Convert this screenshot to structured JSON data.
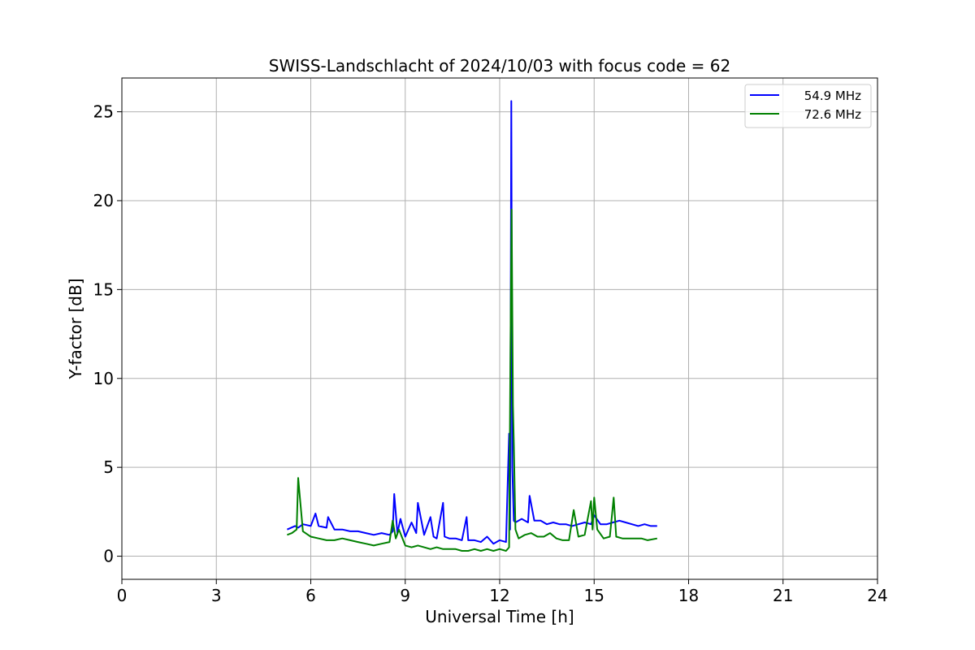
{
  "chart_data": {
    "type": "line",
    "title": "SWISS-Landschlacht of 2024/10/03 with focus code = 62",
    "xlabel": "Universal Time [h]",
    "ylabel": "Y-factor [dB]",
    "xlim": [
      0,
      24
    ],
    "ylim": [
      -1.3,
      26.9
    ],
    "xticks": [
      0,
      3,
      6,
      9,
      12,
      15,
      18,
      21,
      24
    ],
    "yticks": [
      0,
      5,
      10,
      15,
      20,
      25
    ],
    "grid": true,
    "legend_position": "top-right",
    "series": [
      {
        "name": "54.9 MHz",
        "color": "#0000ff",
        "x": [
          5.25,
          5.5,
          5.6,
          5.75,
          6.0,
          6.15,
          6.25,
          6.5,
          6.55,
          6.75,
          7.0,
          7.25,
          7.5,
          7.75,
          8.0,
          8.25,
          8.5,
          8.6,
          8.65,
          8.75,
          8.85,
          9.0,
          9.2,
          9.35,
          9.4,
          9.6,
          9.8,
          9.9,
          10.0,
          10.2,
          10.25,
          10.4,
          10.6,
          10.8,
          10.95,
          11.0,
          11.2,
          11.4,
          11.6,
          11.8,
          12.0,
          12.2,
          12.3,
          12.33,
          12.37,
          12.4,
          12.45,
          12.5,
          12.7,
          12.9,
          12.95,
          13.1,
          13.3,
          13.5,
          13.7,
          13.9,
          14.1,
          14.3,
          14.5,
          14.7,
          14.9,
          15.0,
          15.2,
          15.4,
          15.6,
          15.8,
          16.0,
          16.2,
          16.4,
          16.6,
          16.8,
          17.0
        ],
        "y": [
          1.5,
          1.7,
          1.6,
          1.8,
          1.7,
          2.4,
          1.7,
          1.6,
          2.2,
          1.5,
          1.5,
          1.4,
          1.4,
          1.3,
          1.2,
          1.3,
          1.2,
          1.4,
          3.5,
          1.3,
          2.1,
          1.1,
          1.9,
          1.3,
          3.0,
          1.2,
          2.2,
          1.1,
          1.0,
          3.0,
          1.1,
          1.0,
          1.0,
          0.9,
          2.2,
          0.9,
          0.9,
          0.8,
          1.1,
          0.7,
          0.9,
          0.8,
          6.9,
          1.5,
          25.6,
          5.0,
          2.0,
          1.9,
          2.1,
          1.9,
          3.4,
          2.0,
          2.0,
          1.8,
          1.9,
          1.8,
          1.8,
          1.7,
          1.8,
          1.9,
          1.8,
          2.3,
          1.8,
          1.8,
          1.9,
          2.0,
          1.9,
          1.8,
          1.7,
          1.8,
          1.7,
          1.7
        ]
      },
      {
        "name": "72.6 MHz",
        "color": "#008000",
        "x": [
          5.25,
          5.4,
          5.55,
          5.6,
          5.75,
          6.0,
          6.25,
          6.5,
          6.75,
          7.0,
          7.25,
          7.5,
          7.75,
          8.0,
          8.25,
          8.5,
          8.6,
          8.7,
          8.8,
          9.0,
          9.2,
          9.4,
          9.6,
          9.8,
          10.0,
          10.2,
          10.4,
          10.6,
          10.8,
          11.0,
          11.2,
          11.4,
          11.6,
          11.8,
          12.0,
          12.2,
          12.3,
          12.35,
          12.38,
          12.42,
          12.45,
          12.5,
          12.6,
          12.8,
          13.0,
          13.2,
          13.4,
          13.6,
          13.8,
          14.0,
          14.2,
          14.35,
          14.5,
          14.7,
          14.9,
          14.95,
          15.0,
          15.1,
          15.3,
          15.5,
          15.62,
          15.7,
          15.9,
          16.1,
          16.3,
          16.5,
          16.7,
          17.0
        ],
        "y": [
          1.2,
          1.3,
          1.5,
          4.4,
          1.4,
          1.1,
          1.0,
          0.9,
          0.9,
          1.0,
          0.9,
          0.8,
          0.7,
          0.6,
          0.7,
          0.8,
          2.0,
          1.0,
          1.5,
          0.6,
          0.5,
          0.6,
          0.5,
          0.4,
          0.5,
          0.4,
          0.4,
          0.4,
          0.3,
          0.3,
          0.4,
          0.3,
          0.4,
          0.3,
          0.4,
          0.3,
          0.5,
          13.7,
          19.5,
          8.5,
          6.3,
          1.5,
          1.0,
          1.2,
          1.3,
          1.1,
          1.1,
          1.3,
          1.0,
          0.9,
          0.9,
          2.6,
          1.1,
          1.2,
          3.1,
          1.5,
          3.3,
          1.5,
          1.0,
          1.1,
          3.3,
          1.1,
          1.0,
          1.0,
          1.0,
          1.0,
          0.9,
          1.0
        ]
      }
    ]
  }
}
